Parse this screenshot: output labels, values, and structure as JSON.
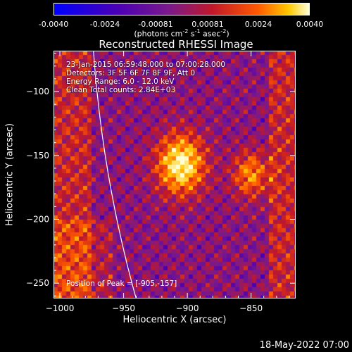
{
  "colorbar": {
    "ticks": [
      "-0.0040",
      "-0.0024",
      "-0.00081",
      "0.00081",
      "0.0024",
      "0.0040"
    ],
    "tick_values": [
      -0.004,
      -0.0024,
      -0.00081,
      0.00081,
      0.0024,
      0.004
    ],
    "range": [
      -0.004,
      0.004
    ],
    "unit_base": "(photons cm",
    "unit_sup1": "-2",
    "unit_mid": " s",
    "unit_sup2": "-1",
    "unit_end": " asec",
    "unit_sup3": "-2",
    "unit_close": ")"
  },
  "chart_data": {
    "type": "heatmap",
    "title": "Reconstructed RHESSI Image",
    "xlabel": "Heliocentric X (arcsec)",
    "ylabel": "Heliocentric Y (arcsec)",
    "xlim": [
      -1005,
      -815
    ],
    "ylim": [
      -262,
      -68
    ],
    "xticks": [
      -1000,
      -950,
      -900,
      -850
    ],
    "xtick_labels": [
      "−1000",
      "−950",
      "−900",
      "−850"
    ],
    "yticks": [
      -100,
      -150,
      -200,
      -250
    ],
    "ytick_labels": [
      "−100",
      "−150",
      "−200",
      "−250"
    ],
    "peak": {
      "x": -905,
      "y": -157
    },
    "sources": [
      {
        "x": -905,
        "y": -157,
        "intensity": 0.004
      },
      {
        "x": -850,
        "y": -165,
        "intensity": 0.0024
      }
    ],
    "colormap": [
      "#0000ff",
      "#4b00b4",
      "#7a1a8c",
      "#c0182a",
      "#ff5a00",
      "#ffc800",
      "#ffffd8"
    ],
    "annotations": [
      "23-Jan-2015 06:59:48.000 to 07:00:28.000",
      "Detectors: 3F 5F 6F 7F 8F 9F, Att 0",
      "Energy Range: 6.0 - 12.0 keV",
      "Clean    Total counts: 2.84E+03"
    ],
    "peak_label": "Position of Peak = [-905,-157]",
    "limb_color": "#ffffff"
  },
  "footer": "18-May-2022 07:00"
}
